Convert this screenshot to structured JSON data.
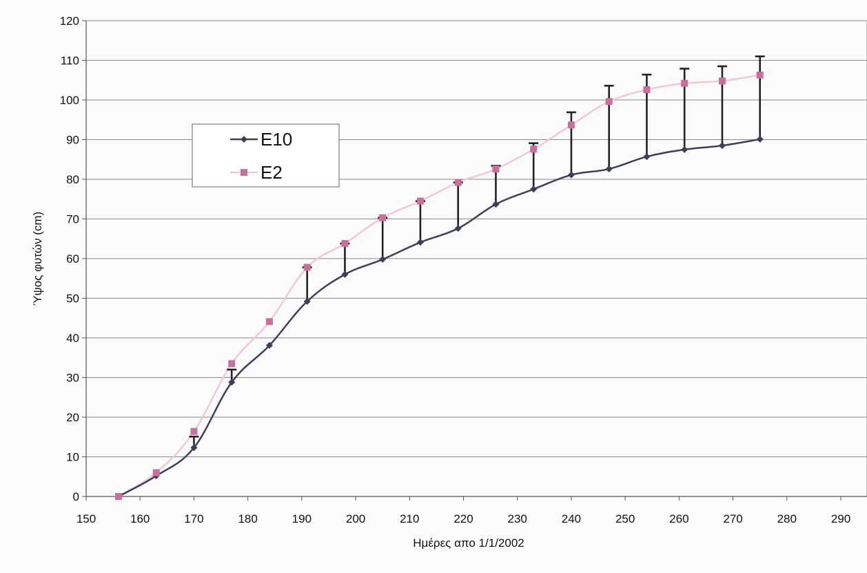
{
  "chart_data": {
    "type": "line",
    "title": "",
    "xlabel": "Ημέρες απο 1/1/2002",
    "ylabel": "Ύψος φυτών (cm)",
    "xlim": [
      150,
      290
    ],
    "ylim": [
      0,
      120
    ],
    "x_ticks": [
      150,
      160,
      170,
      180,
      190,
      200,
      210,
      220,
      230,
      240,
      250,
      260,
      270,
      280,
      290
    ],
    "y_ticks": [
      0,
      10,
      20,
      30,
      40,
      50,
      60,
      70,
      80,
      90,
      100,
      110,
      120
    ],
    "grid": "horizontal",
    "legend_position": "upper-left",
    "series": [
      {
        "name": "E10",
        "color": "#3c3f55",
        "marker": "diamond",
        "points": [
          [
            156,
            0
          ],
          [
            163,
            5.2
          ],
          [
            170,
            12.3
          ],
          [
            177,
            28.8
          ],
          [
            184,
            38.1
          ],
          [
            191,
            49.2
          ],
          [
            198,
            56.0
          ],
          [
            205,
            59.8
          ],
          [
            212,
            64.1
          ],
          [
            219,
            67.6
          ],
          [
            226,
            73.7
          ],
          [
            233,
            77.5
          ],
          [
            240,
            81.1
          ],
          [
            247,
            82.6
          ],
          [
            254,
            85.7
          ],
          [
            261,
            87.5
          ],
          [
            268,
            88.5
          ],
          [
            275,
            90.1
          ]
        ],
        "error_up": [
          0,
          0,
          2.8,
          3.2,
          0,
          0,
          0,
          0,
          0,
          0,
          0,
          0,
          0,
          0,
          0,
          0,
          0,
          0
        ]
      },
      {
        "name": "E2",
        "color": "#f0c8d7",
        "marker_color": "#c8709c",
        "marker": "square",
        "points": [
          [
            156,
            0
          ],
          [
            163,
            6.0
          ],
          [
            170,
            16.4
          ],
          [
            177,
            33.5
          ],
          [
            184,
            44.1
          ],
          [
            191,
            57.8
          ],
          [
            198,
            63.8
          ],
          [
            205,
            70.3
          ],
          [
            212,
            74.5
          ],
          [
            219,
            79.2
          ],
          [
            226,
            82.6
          ],
          [
            233,
            87.6
          ],
          [
            240,
            93.7
          ],
          [
            247,
            99.6
          ],
          [
            254,
            102.6
          ],
          [
            261,
            104.2
          ],
          [
            268,
            104.8
          ],
          [
            275,
            106.3
          ]
        ],
        "error_down": [
          0,
          0,
          0,
          0,
          0,
          8.6,
          7.8,
          10.5,
          10.4,
          11.6,
          8.9,
          10.1,
          12.6,
          17.0,
          16.9,
          16.7,
          16.3,
          16.2
        ],
        "error_up": [
          0,
          0,
          0,
          0,
          0,
          0,
          0,
          0,
          0,
          0,
          0.8,
          1.5,
          3.2,
          4.0,
          3.8,
          3.7,
          3.7,
          4.7
        ]
      }
    ]
  }
}
